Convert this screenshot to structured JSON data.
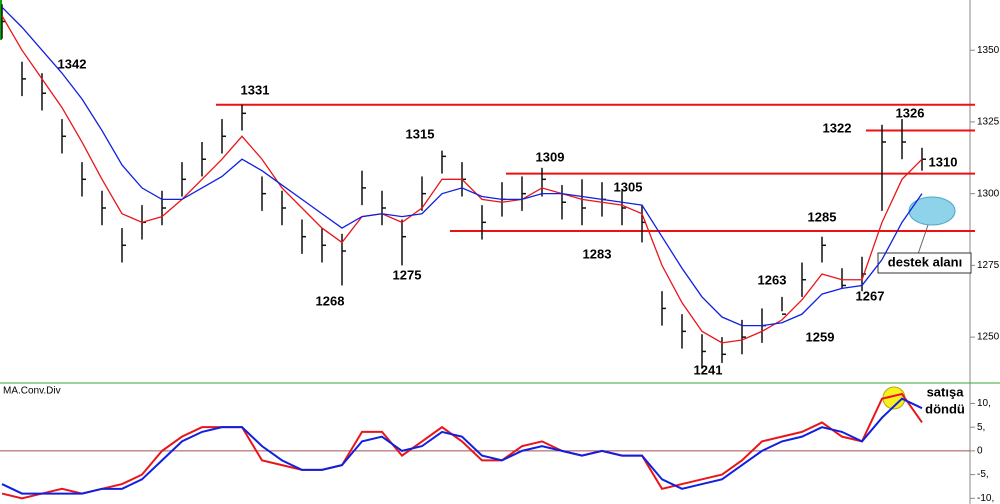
{
  "chart_data": [
    {
      "type": "ohlc",
      "xlim": [
        0,
        48.5
      ],
      "ylim": [
        1234,
        1367.5
      ],
      "yticks": [
        {
          "value": 1250,
          "label": "1250,"
        },
        {
          "value": 1275,
          "label": "1275,"
        },
        {
          "value": 1300,
          "label": "1300,"
        },
        {
          "value": 1325,
          "label": "1325,"
        },
        {
          "value": 1350,
          "label": "1350,"
        }
      ],
      "high": [
        1366,
        1346,
        1342,
        1326,
        1311,
        1301,
        1288,
        1296,
        1301,
        1311,
        1318,
        1326,
        1331,
        1306,
        1301,
        1291,
        1288,
        1286,
        1308,
        1301,
        1291,
        1306,
        1315,
        1311,
        1296,
        1304,
        1306,
        1309,
        1303,
        1305,
        1304,
        1301,
        1296,
        1266,
        1258,
        1251,
        1250,
        1256,
        1260,
        1264,
        1276,
        1285,
        1274,
        1278,
        1324,
        1326,
        1316
      ],
      "low": [
        1354,
        1334,
        1329,
        1314,
        1299,
        1289,
        1276,
        1284,
        1289,
        1299,
        1306,
        1314,
        1322,
        1294,
        1289,
        1279,
        1276,
        1268,
        1296,
        1289,
        1275,
        1294,
        1307,
        1299,
        1284,
        1292,
        1294,
        1299,
        1291,
        1289,
        1292,
        1289,
        1283,
        1254,
        1246,
        1239,
        1241,
        1244,
        1248,
        1259,
        1264,
        1276,
        1267,
        1266,
        1294,
        1312,
        1308
      ],
      "close": [
        1360,
        1340,
        1335,
        1320,
        1305,
        1295,
        1282,
        1290,
        1295,
        1305,
        1312,
        1320,
        1328,
        1300,
        1295,
        1285,
        1282,
        1280,
        1302,
        1295,
        1285,
        1300,
        1313,
        1305,
        1290,
        1298,
        1300,
        1305,
        1297,
        1295,
        1298,
        1295,
        1290,
        1260,
        1252,
        1245,
        1244,
        1250,
        1254,
        1258,
        1270,
        1282,
        1268,
        1272,
        1318,
        1318,
        1312
      ],
      "bar_color": "#111111",
      "series": [
        {
          "color": "#e8161b",
          "values": [
            1362,
            1350,
            1340,
            1330,
            1318,
            1305,
            1293,
            1290,
            1292,
            1298,
            1305,
            1312,
            1320,
            1312,
            1302,
            1295,
            1288,
            1283,
            1292,
            1293,
            1290,
            1295,
            1305,
            1305,
            1298,
            1297,
            1298,
            1302,
            1300,
            1298,
            1297,
            1296,
            1293,
            1275,
            1262,
            1252,
            1248,
            1249,
            1252,
            1256,
            1263,
            1272,
            1270,
            1270,
            1290,
            1305,
            1312
          ]
        },
        {
          "color": "#1020e0",
          "values": [
            1365,
            1358,
            1350,
            1342,
            1333,
            1322,
            1310,
            1302,
            1298,
            1298,
            1302,
            1306,
            1312,
            1308,
            1303,
            1298,
            1293,
            1288,
            1292,
            1293,
            1292,
            1293,
            1300,
            1302,
            1299,
            1298,
            1298,
            1300,
            1300,
            1299,
            1298,
            1297,
            1296,
            1285,
            1274,
            1264,
            1257,
            1254,
            1254,
            1255,
            1258,
            1265,
            1267,
            1268,
            1277,
            1290,
            1300
          ]
        }
      ],
      "levels": [
        {
          "value": 1331,
          "from": 10.7
        },
        {
          "value": 1322,
          "from": 43.2
        },
        {
          "value": 1307,
          "from": 25.2
        },
        {
          "value": 1287,
          "from": 22.4
        }
      ],
      "level_color": "#ee1111",
      "annotations": [
        "1342",
        "1331",
        "1315",
        "1309",
        "1305",
        "1268",
        "1275",
        "1283",
        "1285",
        "1263",
        "1259",
        "1241",
        "1267",
        "1322",
        "1326",
        "1310",
        "destek alanı"
      ]
    },
    {
      "type": "line",
      "title": "MA.Conv.Div",
      "xlim": [
        0,
        48.5
      ],
      "ylim": [
        -11.2,
        14.1
      ],
      "yticks": [
        {
          "value": -10,
          "label": "-10,"
        },
        {
          "value": -5,
          "label": "-5,"
        },
        0,
        {
          "value": 5,
          "label": "5,"
        },
        {
          "value": 10,
          "label": "10,"
        }
      ],
      "series": [
        {
          "color": "#e8161b",
          "values": [
            -9,
            -10,
            -9,
            -8,
            -9,
            -8,
            -7,
            -5,
            0,
            3,
            5,
            5,
            5,
            -2,
            -3,
            -4,
            -4,
            -3,
            4,
            4,
            -1,
            2,
            5,
            2,
            -2,
            -2,
            1,
            2,
            0,
            -1,
            0,
            -1,
            -1,
            -8,
            -7,
            -6,
            -5,
            -2,
            2,
            3,
            4,
            6,
            3,
            2,
            11,
            12,
            6
          ]
        },
        {
          "color": "#1020e0",
          "values": [
            -7,
            -9,
            -9,
            -9,
            -9,
            -8,
            -8,
            -6,
            -2,
            2,
            4,
            5,
            5,
            1,
            -2,
            -4,
            -4,
            -3,
            2,
            3,
            0,
            1,
            4,
            3,
            -1,
            -2,
            0,
            1,
            0,
            -1,
            0,
            -1,
            -1,
            -6,
            -8,
            -7,
            -6,
            -3,
            0,
            2,
            3,
            5,
            4,
            2,
            7,
            11,
            9
          ]
        }
      ],
      "annotations": [
        "satışa",
        "döndü"
      ]
    }
  ]
}
